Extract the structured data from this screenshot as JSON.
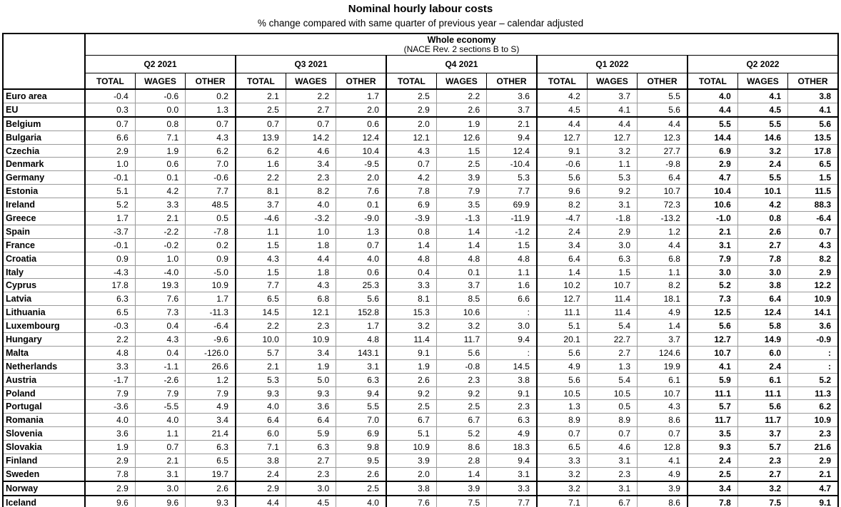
{
  "title": "Nominal hourly labour costs",
  "subtitle": "% change compared with same quarter of previous year – calendar adjusted",
  "table": {
    "economy_header": "Whole economy",
    "economy_subheader": "(NACE Rev. 2 sections B to S)",
    "quarters": [
      "Q2 2021",
      "Q3 2021",
      "Q4 2021",
      "Q1 2022",
      "Q2 2022"
    ],
    "measures": [
      "TOTAL",
      "WAGES",
      "OTHER"
    ],
    "missing_symbol": ":",
    "bold_quarter": "Q2 2022",
    "section_break_countries": [
      "Belgium",
      "Norway",
      "Iceland"
    ],
    "rows": [
      {
        "country": "Euro area",
        "values": [
          "-0.4",
          "-0.6",
          "0.2",
          "2.1",
          "2.2",
          "1.7",
          "2.5",
          "2.2",
          "3.6",
          "4.2",
          "3.7",
          "5.5",
          "4.0",
          "4.1",
          "3.8"
        ]
      },
      {
        "country": "EU",
        "values": [
          "0.3",
          "0.0",
          "1.3",
          "2.5",
          "2.7",
          "2.0",
          "2.9",
          "2.6",
          "3.7",
          "4.5",
          "4.1",
          "5.6",
          "4.4",
          "4.5",
          "4.1"
        ]
      },
      {
        "country": "Belgium",
        "values": [
          "0.7",
          "0.8",
          "0.7",
          "0.7",
          "0.7",
          "0.6",
          "2.0",
          "1.9",
          "2.1",
          "4.4",
          "4.4",
          "4.4",
          "5.5",
          "5.5",
          "5.6"
        ]
      },
      {
        "country": "Bulgaria",
        "values": [
          "6.6",
          "7.1",
          "4.3",
          "13.9",
          "14.2",
          "12.4",
          "12.1",
          "12.6",
          "9.4",
          "12.7",
          "12.7",
          "12.3",
          "14.4",
          "14.6",
          "13.5"
        ]
      },
      {
        "country": "Czechia",
        "values": [
          "2.9",
          "1.9",
          "6.2",
          "6.2",
          "4.6",
          "10.4",
          "4.3",
          "1.5",
          "12.4",
          "9.1",
          "3.2",
          "27.7",
          "6.9",
          "3.2",
          "17.8"
        ]
      },
      {
        "country": "Denmark",
        "values": [
          "1.0",
          "0.6",
          "7.0",
          "1.6",
          "3.4",
          "-9.5",
          "0.7",
          "2.5",
          "-10.4",
          "-0.6",
          "1.1",
          "-9.8",
          "2.9",
          "2.4",
          "6.5"
        ]
      },
      {
        "country": "Germany",
        "values": [
          "-0.1",
          "0.1",
          "-0.6",
          "2.2",
          "2.3",
          "2.0",
          "4.2",
          "3.9",
          "5.3",
          "5.6",
          "5.3",
          "6.4",
          "4.7",
          "5.5",
          "1.5"
        ]
      },
      {
        "country": "Estonia",
        "values": [
          "5.1",
          "4.2",
          "7.7",
          "8.1",
          "8.2",
          "7.6",
          "7.8",
          "7.9",
          "7.7",
          "9.6",
          "9.2",
          "10.7",
          "10.4",
          "10.1",
          "11.5"
        ]
      },
      {
        "country": "Ireland",
        "values": [
          "5.2",
          "3.3",
          "48.5",
          "3.7",
          "4.0",
          "0.1",
          "6.9",
          "3.5",
          "69.9",
          "8.2",
          "3.1",
          "72.3",
          "10.6",
          "4.2",
          "88.3"
        ]
      },
      {
        "country": "Greece",
        "values": [
          "1.7",
          "2.1",
          "0.5",
          "-4.6",
          "-3.2",
          "-9.0",
          "-3.9",
          "-1.3",
          "-11.9",
          "-4.7",
          "-1.8",
          "-13.2",
          "-1.0",
          "0.8",
          "-6.4"
        ]
      },
      {
        "country": "Spain",
        "values": [
          "-3.7",
          "-2.2",
          "-7.8",
          "1.1",
          "1.0",
          "1.3",
          "0.8",
          "1.4",
          "-1.2",
          "2.4",
          "2.9",
          "1.2",
          "2.1",
          "2.6",
          "0.7"
        ]
      },
      {
        "country": "France",
        "values": [
          "-0.1",
          "-0.2",
          "0.2",
          "1.5",
          "1.8",
          "0.7",
          "1.4",
          "1.4",
          "1.5",
          "3.4",
          "3.0",
          "4.4",
          "3.1",
          "2.7",
          "4.3"
        ]
      },
      {
        "country": "Croatia",
        "values": [
          "0.9",
          "1.0",
          "0.9",
          "4.3",
          "4.4",
          "4.0",
          "4.8",
          "4.8",
          "4.8",
          "6.4",
          "6.3",
          "6.8",
          "7.9",
          "7.8",
          "8.2"
        ]
      },
      {
        "country": "Italy",
        "values": [
          "-4.3",
          "-4.0",
          "-5.0",
          "1.5",
          "1.8",
          "0.6",
          "0.4",
          "0.1",
          "1.1",
          "1.4",
          "1.5",
          "1.1",
          "3.0",
          "3.0",
          "2.9"
        ]
      },
      {
        "country": "Cyprus",
        "values": [
          "17.8",
          "19.3",
          "10.9",
          "7.7",
          "4.3",
          "25.3",
          "3.3",
          "3.7",
          "1.6",
          "10.2",
          "10.7",
          "8.2",
          "5.2",
          "3.8",
          "12.2"
        ]
      },
      {
        "country": "Latvia",
        "values": [
          "6.3",
          "7.6",
          "1.7",
          "6.5",
          "6.8",
          "5.6",
          "8.1",
          "8.5",
          "6.6",
          "12.7",
          "11.4",
          "18.1",
          "7.3",
          "6.4",
          "10.9"
        ]
      },
      {
        "country": "Lithuania",
        "values": [
          "6.5",
          "7.3",
          "-11.3",
          "14.5",
          "12.1",
          "152.8",
          "15.3",
          "10.6",
          ":",
          "11.1",
          "11.4",
          "4.9",
          "12.5",
          "12.4",
          "14.1"
        ]
      },
      {
        "country": "Luxembourg",
        "values": [
          "-0.3",
          "0.4",
          "-6.4",
          "2.2",
          "2.3",
          "1.7",
          "3.2",
          "3.2",
          "3.0",
          "5.1",
          "5.4",
          "1.4",
          "5.6",
          "5.8",
          "3.6"
        ]
      },
      {
        "country": "Hungary",
        "values": [
          "2.2",
          "4.3",
          "-9.6",
          "10.0",
          "10.9",
          "4.8",
          "11.4",
          "11.7",
          "9.4",
          "20.1",
          "22.7",
          "3.7",
          "12.7",
          "14.9",
          "-0.9"
        ]
      },
      {
        "country": "Malta",
        "values": [
          "4.8",
          "0.4",
          "-126.0",
          "5.7",
          "3.4",
          "143.1",
          "9.1",
          "5.6",
          ":",
          "5.6",
          "2.7",
          "124.6",
          "10.7",
          "6.0",
          ":"
        ]
      },
      {
        "country": "Netherlands",
        "values": [
          "3.3",
          "-1.1",
          "26.6",
          "2.1",
          "1.9",
          "3.1",
          "1.9",
          "-0.8",
          "14.5",
          "4.9",
          "1.3",
          "19.9",
          "4.1",
          "2.4",
          ":"
        ]
      },
      {
        "country": "Austria",
        "values": [
          "-1.7",
          "-2.6",
          "1.2",
          "5.3",
          "5.0",
          "6.3",
          "2.6",
          "2.3",
          "3.8",
          "5.6",
          "5.4",
          "6.1",
          "5.9",
          "6.1",
          "5.2"
        ]
      },
      {
        "country": "Poland",
        "values": [
          "7.9",
          "7.9",
          "7.9",
          "9.3",
          "9.3",
          "9.4",
          "9.2",
          "9.2",
          "9.1",
          "10.5",
          "10.5",
          "10.7",
          "11.1",
          "11.1",
          "11.3"
        ]
      },
      {
        "country": "Portugal",
        "values": [
          "-3.6",
          "-5.5",
          "4.9",
          "4.0",
          "3.6",
          "5.5",
          "2.5",
          "2.5",
          "2.3",
          "1.3",
          "0.5",
          "4.3",
          "5.7",
          "5.6",
          "6.2"
        ]
      },
      {
        "country": "Romania",
        "values": [
          "4.0",
          "4.0",
          "3.4",
          "6.4",
          "6.4",
          "7.0",
          "6.7",
          "6.7",
          "6.3",
          "8.9",
          "8.9",
          "8.6",
          "11.7",
          "11.7",
          "10.9"
        ]
      },
      {
        "country": "Slovenia",
        "values": [
          "3.6",
          "1.1",
          "21.4",
          "6.0",
          "5.9",
          "6.9",
          "5.1",
          "5.2",
          "4.9",
          "0.7",
          "0.7",
          "0.7",
          "3.5",
          "3.7",
          "2.3"
        ]
      },
      {
        "country": "Slovakia",
        "values": [
          "1.9",
          "0.7",
          "6.3",
          "7.1",
          "6.3",
          "9.8",
          "10.9",
          "8.6",
          "18.3",
          "6.5",
          "4.6",
          "12.8",
          "9.3",
          "5.7",
          "21.6"
        ]
      },
      {
        "country": "Finland",
        "values": [
          "2.9",
          "2.1",
          "6.5",
          "3.8",
          "2.7",
          "9.5",
          "3.9",
          "2.8",
          "9.4",
          "3.3",
          "3.1",
          "4.1",
          "2.4",
          "2.3",
          "2.9"
        ]
      },
      {
        "country": "Sweden",
        "values": [
          "7.8",
          "3.1",
          "19.7",
          "2.4",
          "2.3",
          "2.6",
          "2.0",
          "1.4",
          "3.1",
          "3.2",
          "2.3",
          "4.9",
          "2.5",
          "2.7",
          "2.1"
        ]
      },
      {
        "country": "Norway",
        "values": [
          "2.9",
          "3.0",
          "2.6",
          "2.9",
          "3.0",
          "2.5",
          "3.8",
          "3.9",
          "3.3",
          "3.2",
          "3.1",
          "3.9",
          "3.4",
          "3.2",
          "4.7"
        ]
      },
      {
        "country": "Iceland",
        "values": [
          "9.6",
          "9.6",
          "9.3",
          "4.4",
          "4.5",
          "4.0",
          "7.6",
          "7.5",
          "7.7",
          "7.1",
          "6.7",
          "8.6",
          "7.8",
          "7.5",
          "9.1"
        ]
      }
    ]
  }
}
